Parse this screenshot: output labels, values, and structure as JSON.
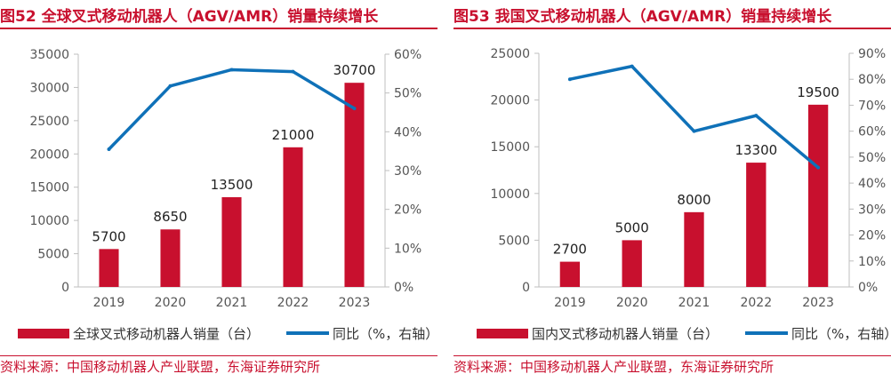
{
  "figures": [
    {
      "title": "图52  全球叉式移动机器人（AGV/AMR）销量持续增长",
      "source": "资料来源：中国移动机器人产业联盟，东海证券研究所",
      "legend_bar": "全球叉式移动机器人销量（台）",
      "legend_line": "同比（%，右轴）"
    },
    {
      "title": "图53  我国叉式移动机器人（AGV/AMR）销量持续增长",
      "source": "资料来源：中国移动机器人产业联盟，东海证券研究所",
      "legend_bar": "国内叉式移动机器人销量（台）",
      "legend_line": "同比（%，右轴）"
    }
  ],
  "colors": {
    "bar": "#c8102e",
    "line": "#0f71b8",
    "title": "#c8102e",
    "axis_text": "#555555",
    "label_text": "#222222"
  },
  "chart_data": [
    {
      "type": "bar",
      "categories": [
        "2019",
        "2020",
        "2021",
        "2022",
        "2023"
      ],
      "series": [
        {
          "name": "全球叉式移动机器人销量（台）",
          "type": "bar",
          "axis": "left",
          "values": [
            5700,
            8650,
            13500,
            21000,
            30700
          ]
        },
        {
          "name": "同比（%，右轴）",
          "type": "line",
          "axis": "right",
          "values": [
            35.5,
            51.8,
            56,
            55.5,
            46
          ]
        }
      ],
      "ylim_left": [
        0,
        35000
      ],
      "yticks_left": [
        "0",
        "5000",
        "10000",
        "15000",
        "20000",
        "25000",
        "30000",
        "35000"
      ],
      "ylim_right": [
        0,
        60
      ],
      "yticks_right": [
        "0%",
        "10%",
        "20%",
        "30%",
        "40%",
        "50%",
        "60%"
      ],
      "data_labels": [
        "5700",
        "8650",
        "13500",
        "21000",
        "30700"
      ],
      "grid": false,
      "legend": "bottom"
    },
    {
      "type": "bar",
      "categories": [
        "2019",
        "2020",
        "2021",
        "2022",
        "2023"
      ],
      "series": [
        {
          "name": "国内叉式移动机器人销量（台）",
          "type": "bar",
          "axis": "left",
          "values": [
            2700,
            5000,
            8000,
            13300,
            19500
          ]
        },
        {
          "name": "同比（%，右轴）",
          "type": "line",
          "axis": "right",
          "values": [
            80,
            85,
            60,
            66,
            46
          ]
        }
      ],
      "ylim_left": [
        0,
        25000
      ],
      "yticks_left": [
        "0",
        "5000",
        "10000",
        "15000",
        "20000",
        "25000"
      ],
      "ylim_right": [
        0,
        90
      ],
      "yticks_right": [
        "0%",
        "10%",
        "20%",
        "30%",
        "40%",
        "50%",
        "60%",
        "70%",
        "80%",
        "90%"
      ],
      "data_labels": [
        "2700",
        "5000",
        "8000",
        "13300",
        "19500"
      ],
      "grid": false,
      "legend": "bottom"
    }
  ]
}
